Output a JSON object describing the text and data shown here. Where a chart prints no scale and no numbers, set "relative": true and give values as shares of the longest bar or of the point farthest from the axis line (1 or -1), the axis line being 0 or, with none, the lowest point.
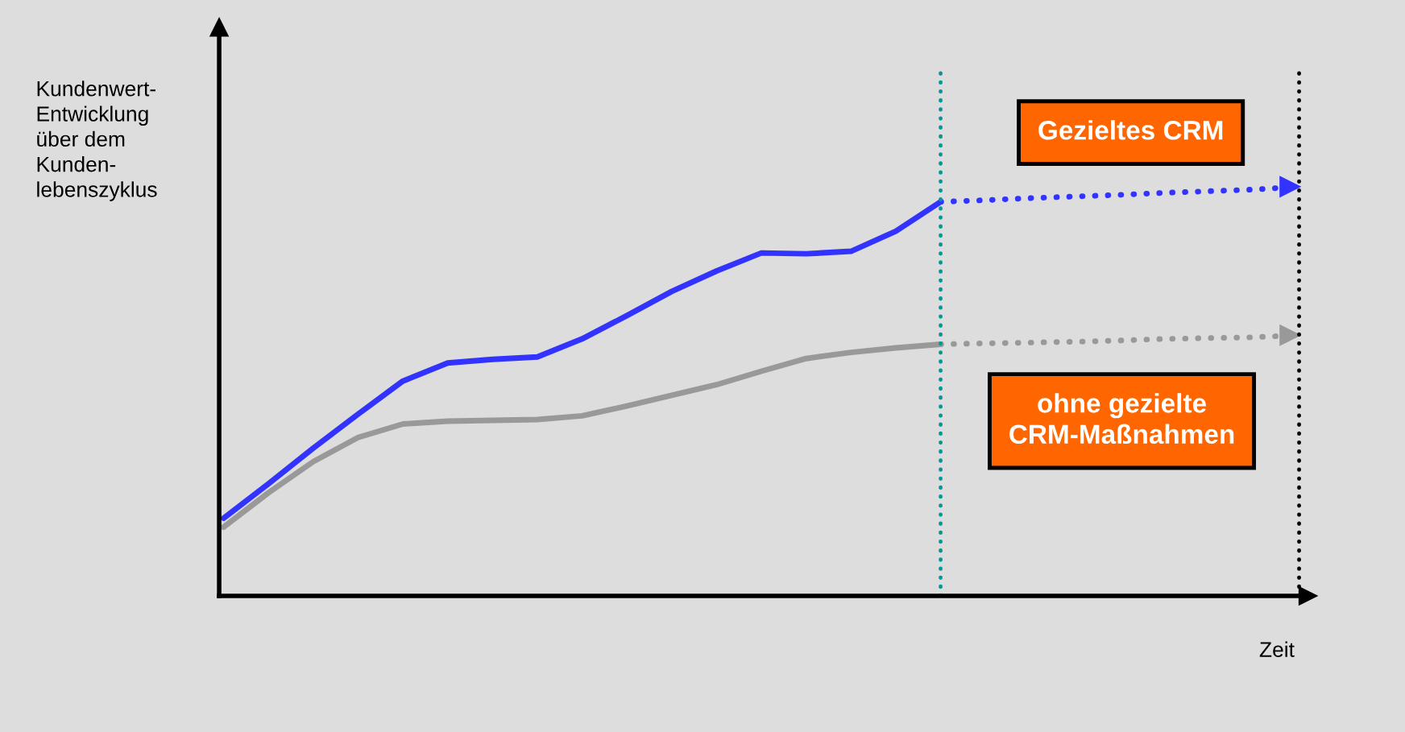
{
  "chart_data": {
    "type": "line",
    "relative": true,
    "ylabel": "Kundenwert-\nEntwicklung\nüber dem\nKunden-\nlebenszyklus",
    "xlabel": "Zeit",
    "annotations": [
      "Gezieltes CRM",
      "ohne gezielte\nCRM-Maßnahmen"
    ],
    "categories": [
      null,
      null,
      null,
      null,
      null,
      null,
      null,
      null,
      null,
      null,
      null,
      null,
      null,
      null,
      null,
      null,
      null,
      null,
      null,
      null,
      null,
      null,
      null,
      null,
      null
    ],
    "series": [
      {
        "color": "#3333ff",
        "line_style": "solid",
        "values": [
          0.19,
          0.274,
          0.361,
          0.444,
          0.525,
          0.569,
          0.578,
          0.584,
          0.628,
          0.685,
          0.744,
          0.794,
          0.838,
          0.836,
          0.842,
          0.891,
          0.963,
          null,
          null,
          null,
          null,
          null,
          null,
          null,
          null
        ]
      },
      {
        "color": "#3333ff",
        "line_style": "dotted",
        "values": [
          null,
          null,
          null,
          null,
          null,
          null,
          null,
          null,
          null,
          null,
          null,
          null,
          null,
          null,
          null,
          null,
          0.963,
          0.967,
          0.972,
          0.976,
          0.98,
          0.985,
          0.989,
          0.993,
          1
        ]
      },
      {
        "color": "#999999",
        "line_style": "solid",
        "values": [
          0.168,
          0.252,
          0.328,
          0.387,
          0.42,
          0.427,
          0.429,
          0.431,
          0.44,
          0.464,
          0.49,
          0.516,
          0.549,
          0.58,
          0.595,
          0.606,
          0.615,
          null,
          null,
          null,
          null,
          null,
          null,
          null,
          null
        ]
      },
      {
        "color": "#999999",
        "line_style": "dotted",
        "values": [
          null,
          null,
          null,
          null,
          null,
          null,
          null,
          null,
          null,
          null,
          null,
          null,
          null,
          null,
          null,
          null,
          0.615,
          0.617,
          0.619,
          0.621,
          0.624,
          0.628,
          0.63,
          0.632,
          0.637
        ]
      }
    ]
  }
}
